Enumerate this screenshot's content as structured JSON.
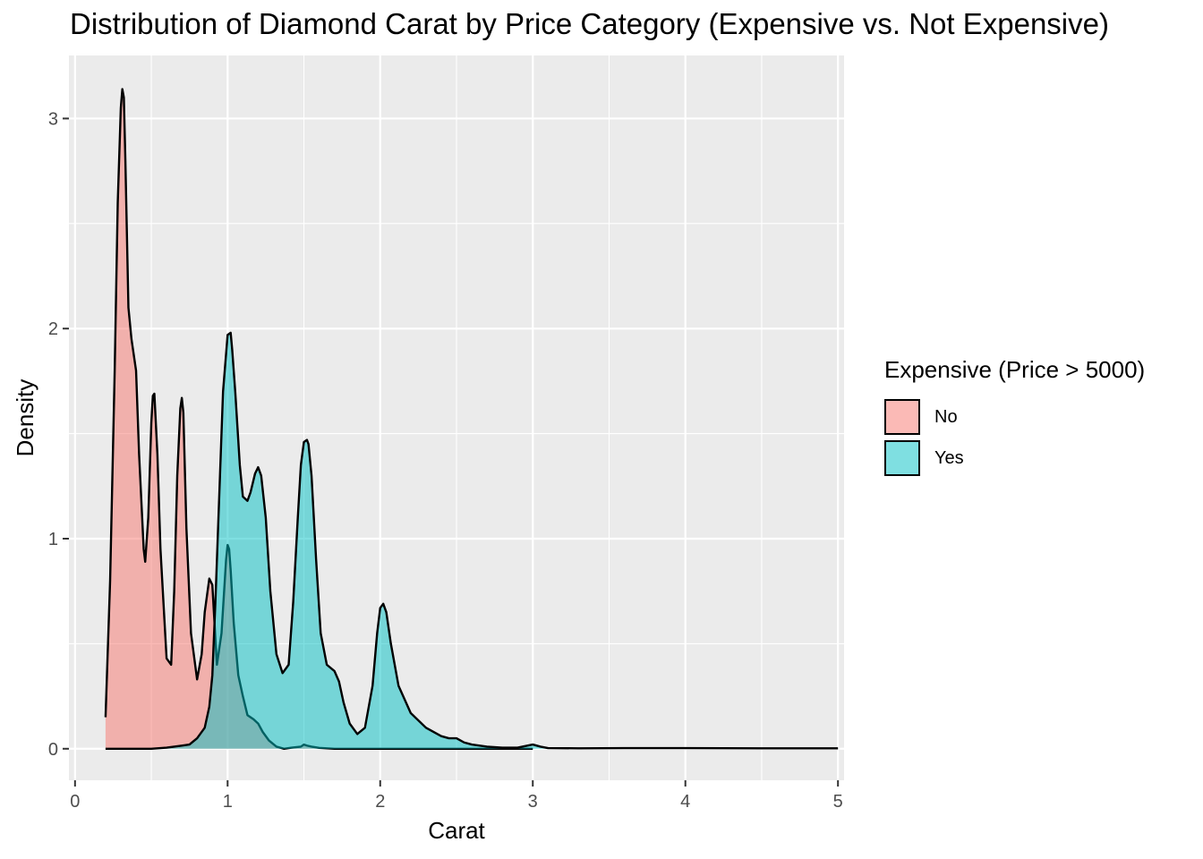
{
  "chart_data": {
    "type": "area",
    "title": "Distribution of Diamond Carat by Price Category (Expensive vs. Not Expensive)",
    "xlabel": "Carat",
    "ylabel": "Density",
    "xlim": [
      -0.04,
      5.04
    ],
    "ylim": [
      -0.15,
      3.3
    ],
    "x_ticks": [
      0,
      1,
      2,
      3,
      4,
      5
    ],
    "y_ticks": [
      0,
      1,
      2,
      3
    ],
    "grid": true,
    "legend_title": "Expensive (Price > 5000)",
    "legend_position": "right",
    "series": [
      {
        "name": "No",
        "color": "#F8766D",
        "x": [
          0.2,
          0.23,
          0.26,
          0.28,
          0.3,
          0.31,
          0.32,
          0.33,
          0.35,
          0.37,
          0.4,
          0.42,
          0.45,
          0.46,
          0.48,
          0.5,
          0.51,
          0.52,
          0.54,
          0.56,
          0.6,
          0.63,
          0.65,
          0.67,
          0.69,
          0.7,
          0.71,
          0.73,
          0.76,
          0.8,
          0.83,
          0.85,
          0.88,
          0.9,
          0.91,
          0.93,
          0.96,
          0.99,
          1.0,
          1.01,
          1.02,
          1.04,
          1.07,
          1.1,
          1.13,
          1.17,
          1.2,
          1.23,
          1.27,
          1.32,
          1.37,
          1.42,
          1.48,
          1.5,
          1.52,
          1.55,
          1.6,
          1.7,
          2.0,
          2.5,
          3.0
        ],
        "y": [
          0.15,
          0.8,
          1.8,
          2.6,
          3.05,
          3.14,
          3.1,
          2.8,
          2.1,
          1.95,
          1.8,
          1.4,
          0.95,
          0.89,
          1.1,
          1.55,
          1.68,
          1.69,
          1.4,
          0.95,
          0.43,
          0.4,
          0.75,
          1.3,
          1.62,
          1.67,
          1.6,
          1.05,
          0.55,
          0.33,
          0.45,
          0.65,
          0.81,
          0.78,
          0.65,
          0.4,
          0.55,
          0.9,
          0.97,
          0.95,
          0.85,
          0.6,
          0.35,
          0.25,
          0.16,
          0.14,
          0.12,
          0.08,
          0.04,
          0.01,
          0.0,
          0.005,
          0.01,
          0.02,
          0.015,
          0.01,
          0.004,
          0.0,
          0.0,
          0.0,
          0.0
        ]
      },
      {
        "name": "Yes",
        "color": "#00BFC4",
        "x": [
          0.2,
          0.4,
          0.5,
          0.6,
          0.65,
          0.7,
          0.75,
          0.8,
          0.85,
          0.88,
          0.9,
          0.92,
          0.95,
          0.97,
          1.0,
          1.02,
          1.03,
          1.05,
          1.08,
          1.1,
          1.13,
          1.15,
          1.18,
          1.2,
          1.22,
          1.25,
          1.28,
          1.32,
          1.36,
          1.4,
          1.43,
          1.46,
          1.48,
          1.5,
          1.52,
          1.53,
          1.55,
          1.58,
          1.61,
          1.65,
          1.7,
          1.73,
          1.76,
          1.8,
          1.85,
          1.9,
          1.95,
          1.98,
          2.0,
          2.02,
          2.04,
          2.07,
          2.12,
          2.2,
          2.3,
          2.4,
          2.45,
          2.5,
          2.55,
          2.6,
          2.7,
          2.8,
          2.9,
          3.0,
          3.05,
          3.1,
          3.3,
          3.6,
          4.0,
          4.5,
          5.0
        ],
        "y": [
          0.0,
          0.0,
          0.0,
          0.005,
          0.01,
          0.015,
          0.02,
          0.05,
          0.1,
          0.2,
          0.35,
          0.7,
          1.3,
          1.7,
          1.97,
          1.98,
          1.9,
          1.7,
          1.35,
          1.2,
          1.18,
          1.22,
          1.31,
          1.34,
          1.3,
          1.1,
          0.75,
          0.45,
          0.36,
          0.4,
          0.7,
          1.1,
          1.35,
          1.46,
          1.47,
          1.45,
          1.3,
          0.9,
          0.55,
          0.4,
          0.37,
          0.32,
          0.22,
          0.12,
          0.07,
          0.1,
          0.3,
          0.55,
          0.67,
          0.69,
          0.65,
          0.5,
          0.3,
          0.17,
          0.1,
          0.06,
          0.05,
          0.05,
          0.03,
          0.02,
          0.01,
          0.005,
          0.005,
          0.02,
          0.01,
          0.003,
          0.002,
          0.003,
          0.003,
          0.002,
          0.002
        ]
      }
    ]
  }
}
